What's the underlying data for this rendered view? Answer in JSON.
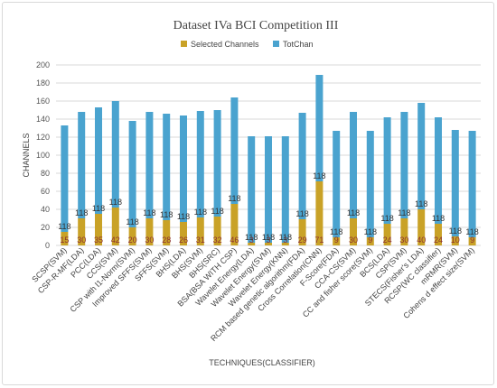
{
  "chart_data": {
    "type": "bar",
    "stacked": true,
    "title": "Dataset IVa BCI Competition III",
    "xlabel": "TECHNIQUES(CLASSIFIER)",
    "ylabel": "CHANNELS",
    "ylim": [
      0,
      200
    ],
    "yticks": [
      0,
      20,
      40,
      60,
      80,
      100,
      120,
      140,
      160,
      180,
      200
    ],
    "grid": true,
    "legend": "top",
    "categories": [
      "SCSP(SVM)",
      "CSP-R-MF(LDA)",
      "PCC(LDA)",
      "CCS(SVM)",
      "CSP with l1-Norm(SVM)",
      "Improved SFFS(SVM)",
      "SFFS(SVM)",
      "BHS(LDA)",
      "BHS(SVM)",
      "BHS(SRC)",
      "BSA(BSA WITH CSP)",
      "Wavelet Energy(LDA)",
      "Wavelet Energy(SVM)",
      "Wavelet Energy(KNN)",
      "RCM based genetic algorithm(FDA)",
      "Cross Correlation(CNN)",
      "F-Score(FDA)",
      "CCA-CS(SVM)",
      "CC and fisher score(SVM)",
      "BCS(LDA)",
      "CSP(SVM)",
      "STECS(Fisher's LDA)",
      "RCSP(WC classifier)",
      "mRMR(SVM)",
      "Cohens d effect size(SVM)"
    ],
    "series": [
      {
        "name": "Selected Channels",
        "color": "#c9a227",
        "values": [
          15,
          30,
          35,
          42,
          20,
          30,
          28,
          26,
          31,
          32,
          46,
          3,
          3,
          3,
          29,
          71,
          9,
          30,
          9,
          24,
          30,
          40,
          24,
          10,
          9
        ]
      },
      {
        "name": "TotChan",
        "color": "#4aa3cf",
        "values": [
          118,
          118,
          118,
          118,
          118,
          118,
          118,
          118,
          118,
          118,
          118,
          118,
          118,
          118,
          118,
          118,
          118,
          118,
          118,
          118,
          118,
          118,
          118,
          118,
          118
        ]
      }
    ],
    "data_label_color": "#8b2f2f"
  }
}
